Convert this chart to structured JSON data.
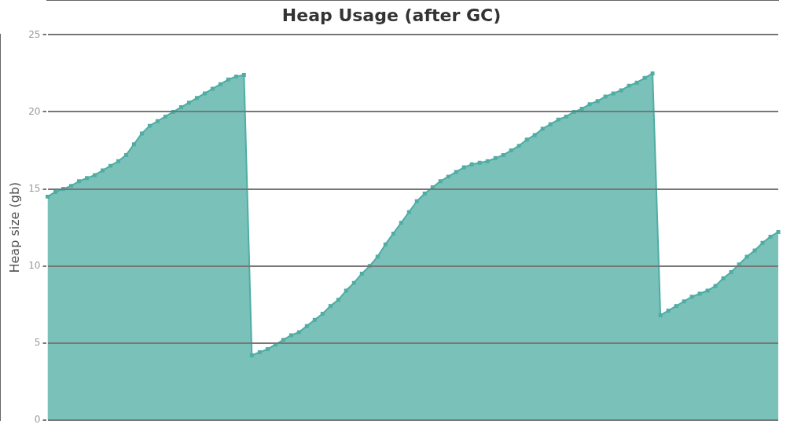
{
  "chart_data": {
    "type": "area",
    "title": "Heap Usage (after GC)",
    "ylabel": "Heap size (gb)",
    "categories": [
      null,
      null,
      null,
      null,
      null,
      null,
      null,
      null,
      null,
      null,
      null,
      null,
      null,
      null,
      null,
      null,
      null,
      null,
      null,
      null,
      null,
      null,
      null,
      null,
      null,
      null,
      null,
      null,
      null,
      null,
      null,
      null,
      null,
      null,
      null,
      null,
      null,
      null,
      null,
      null,
      null,
      null,
      null,
      null,
      null,
      null,
      null,
      null,
      null,
      null,
      null,
      null,
      null,
      null,
      null,
      null,
      null,
      null,
      null,
      null,
      null,
      null,
      null,
      null,
      null,
      null,
      null,
      null,
      null,
      null,
      null,
      null,
      null,
      null,
      null,
      null,
      null,
      null,
      null,
      null,
      null,
      null,
      null,
      null,
      null,
      null,
      null,
      null,
      null,
      null,
      null,
      null,
      null,
      null
    ],
    "series": [
      {
        "color": "#4fada3",
        "values": [
          14.5,
          14.8,
          15.0,
          15.2,
          15.5,
          15.7,
          15.9,
          16.2,
          16.5,
          16.8,
          17.2,
          17.9,
          18.6,
          19.1,
          19.4,
          19.7,
          20.0,
          20.3,
          20.6,
          20.9,
          21.2,
          21.5,
          21.8,
          22.1,
          22.3,
          22.4,
          4.2,
          4.4,
          4.6,
          4.9,
          5.2,
          5.5,
          5.7,
          6.1,
          6.5,
          6.9,
          7.4,
          7.8,
          8.4,
          8.9,
          9.5,
          10.0,
          10.6,
          11.4,
          12.1,
          12.8,
          13.5,
          14.2,
          14.7,
          15.1,
          15.5,
          15.8,
          16.1,
          16.4,
          16.6,
          16.7,
          16.8,
          17.0,
          17.2,
          17.5,
          17.8,
          18.2,
          18.5,
          18.9,
          19.2,
          19.5,
          19.7,
          20.0,
          20.2,
          20.5,
          20.7,
          21.0,
          21.2,
          21.4,
          21.7,
          21.9,
          22.2,
          22.5,
          6.8,
          7.1,
          7.4,
          7.7,
          8.0,
          8.2,
          8.4,
          8.7,
          9.2,
          9.6,
          10.1,
          10.6,
          11.0,
          11.5,
          11.9,
          12.2
        ]
      }
    ],
    "ylim": [
      0,
      25
    ],
    "yticks": [
      0,
      5,
      10,
      15,
      20,
      25
    ],
    "grid": "y",
    "legend": false,
    "marker": "square",
    "tick_labels": "y"
  }
}
